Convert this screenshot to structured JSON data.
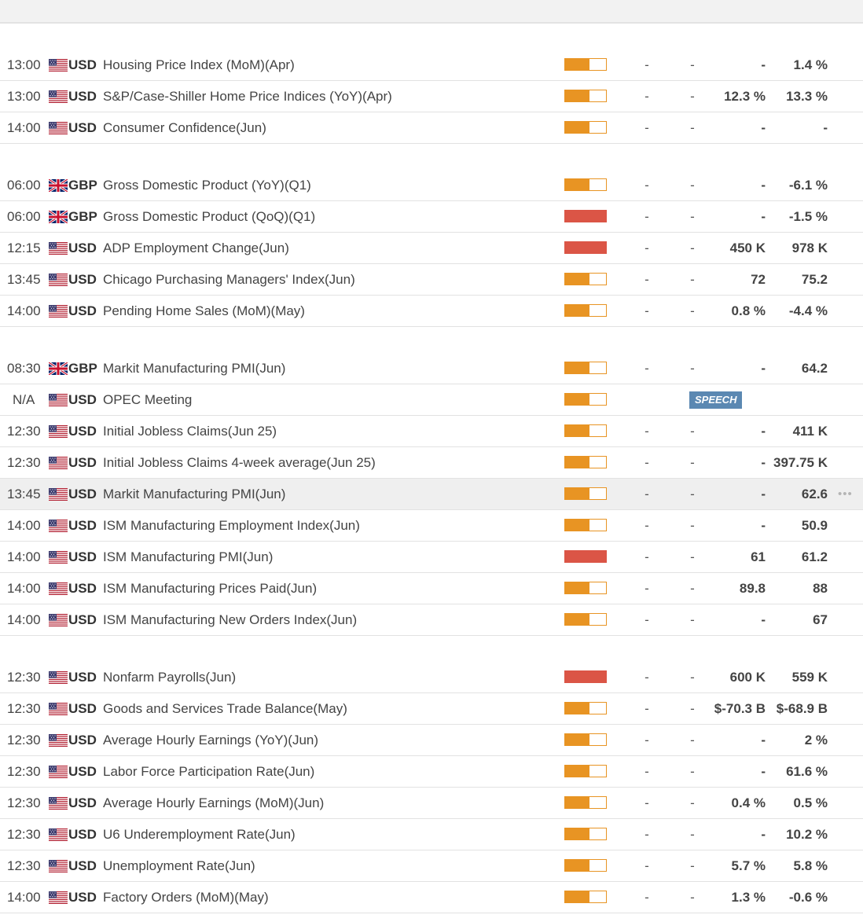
{
  "colors": {
    "medium": "#e89423",
    "high": "#db5546",
    "speech": "#5b88b2"
  },
  "sections": [
    {
      "rows": [
        {
          "time": "13:00",
          "flag": "us-flag-icon",
          "currency": "USD",
          "event": "Housing Price Index (MoM)(Apr)",
          "impact": "medium",
          "actual": "-",
          "deviation": "-",
          "consensus": "-",
          "previous": "1.4 %"
        },
        {
          "time": "13:00",
          "flag": "us-flag-icon",
          "currency": "USD",
          "event": "S&P/Case-Shiller Home Price Indices (YoY)(Apr)",
          "impact": "medium",
          "actual": "-",
          "deviation": "-",
          "consensus": "12.3 %",
          "previous": "13.3 %"
        },
        {
          "time": "14:00",
          "flag": "us-flag-icon",
          "currency": "USD",
          "event": "Consumer Confidence(Jun)",
          "impact": "medium",
          "actual": "-",
          "deviation": "-",
          "consensus": "-",
          "previous": "-"
        }
      ]
    },
    {
      "rows": [
        {
          "time": "06:00",
          "flag": "uk-flag-icon",
          "currency": "GBP",
          "event": "Gross Domestic Product (YoY)(Q1)",
          "impact": "medium",
          "actual": "-",
          "deviation": "-",
          "consensus": "-",
          "previous": "-6.1 %"
        },
        {
          "time": "06:00",
          "flag": "uk-flag-icon",
          "currency": "GBP",
          "event": "Gross Domestic Product (QoQ)(Q1)",
          "impact": "high",
          "actual": "-",
          "deviation": "-",
          "consensus": "-",
          "previous": "-1.5 %"
        },
        {
          "time": "12:15",
          "flag": "us-flag-icon",
          "currency": "USD",
          "event": "ADP Employment Change(Jun)",
          "impact": "high",
          "actual": "-",
          "deviation": "-",
          "consensus": "450 K",
          "previous": "978 K"
        },
        {
          "time": "13:45",
          "flag": "us-flag-icon",
          "currency": "USD",
          "event": "Chicago Purchasing Managers' Index(Jun)",
          "impact": "medium",
          "actual": "-",
          "deviation": "-",
          "consensus": "72",
          "previous": "75.2"
        },
        {
          "time": "14:00",
          "flag": "us-flag-icon",
          "currency": "USD",
          "event": "Pending Home Sales (MoM)(May)",
          "impact": "medium",
          "actual": "-",
          "deviation": "-",
          "consensus": "0.8 %",
          "previous": "-4.4 %"
        }
      ]
    },
    {
      "rows": [
        {
          "time": "08:30",
          "flag": "uk-flag-icon",
          "currency": "GBP",
          "event": "Markit Manufacturing PMI(Jun)",
          "impact": "medium",
          "actual": "-",
          "deviation": "-",
          "consensus": "-",
          "previous": "64.2"
        },
        {
          "time": "N/A",
          "flag": "us-flag-icon",
          "currency": "USD",
          "event": "OPEC Meeting",
          "impact": "medium",
          "speech": "SPEECH"
        },
        {
          "time": "12:30",
          "flag": "us-flag-icon",
          "currency": "USD",
          "event": "Initial Jobless Claims(Jun 25)",
          "impact": "medium",
          "actual": "-",
          "deviation": "-",
          "consensus": "-",
          "previous": "411 K"
        },
        {
          "time": "12:30",
          "flag": "us-flag-icon",
          "currency": "USD",
          "event": "Initial Jobless Claims 4-week average(Jun 25)",
          "impact": "medium",
          "actual": "-",
          "deviation": "-",
          "consensus": "-",
          "previous": "397.75 K"
        },
        {
          "time": "13:45",
          "flag": "us-flag-icon",
          "currency": "USD",
          "event": "Markit Manufacturing PMI(Jun)",
          "impact": "medium",
          "actual": "-",
          "deviation": "-",
          "consensus": "-",
          "previous": "62.6",
          "highlighted": true,
          "more": "•••"
        },
        {
          "time": "14:00",
          "flag": "us-flag-icon",
          "currency": "USD",
          "event": "ISM Manufacturing Employment Index(Jun)",
          "impact": "medium",
          "actual": "-",
          "deviation": "-",
          "consensus": "-",
          "previous": "50.9"
        },
        {
          "time": "14:00",
          "flag": "us-flag-icon",
          "currency": "USD",
          "event": "ISM Manufacturing PMI(Jun)",
          "impact": "high",
          "actual": "-",
          "deviation": "-",
          "consensus": "61",
          "previous": "61.2"
        },
        {
          "time": "14:00",
          "flag": "us-flag-icon",
          "currency": "USD",
          "event": "ISM Manufacturing Prices Paid(Jun)",
          "impact": "medium",
          "actual": "-",
          "deviation": "-",
          "consensus": "89.8",
          "previous": "88"
        },
        {
          "time": "14:00",
          "flag": "us-flag-icon",
          "currency": "USD",
          "event": "ISM Manufacturing New Orders Index(Jun)",
          "impact": "medium",
          "actual": "-",
          "deviation": "-",
          "consensus": "-",
          "previous": "67"
        }
      ]
    },
    {
      "rows": [
        {
          "time": "12:30",
          "flag": "us-flag-icon",
          "currency": "USD",
          "event": "Nonfarm Payrolls(Jun)",
          "impact": "high",
          "actual": "-",
          "deviation": "-",
          "consensus": "600 K",
          "previous": "559 K"
        },
        {
          "time": "12:30",
          "flag": "us-flag-icon",
          "currency": "USD",
          "event": "Goods and Services Trade Balance(May)",
          "impact": "medium",
          "actual": "-",
          "deviation": "-",
          "consensus": "$-70.3 B",
          "previous": "$-68.9 B"
        },
        {
          "time": "12:30",
          "flag": "us-flag-icon",
          "currency": "USD",
          "event": "Average Hourly Earnings (YoY)(Jun)",
          "impact": "medium",
          "actual": "-",
          "deviation": "-",
          "consensus": "-",
          "previous": "2 %"
        },
        {
          "time": "12:30",
          "flag": "us-flag-icon",
          "currency": "USD",
          "event": "Labor Force Participation Rate(Jun)",
          "impact": "medium",
          "actual": "-",
          "deviation": "-",
          "consensus": "-",
          "previous": "61.6 %"
        },
        {
          "time": "12:30",
          "flag": "us-flag-icon",
          "currency": "USD",
          "event": "Average Hourly Earnings (MoM)(Jun)",
          "impact": "medium",
          "actual": "-",
          "deviation": "-",
          "consensus": "0.4 %",
          "previous": "0.5 %"
        },
        {
          "time": "12:30",
          "flag": "us-flag-icon",
          "currency": "USD",
          "event": "U6 Underemployment Rate(Jun)",
          "impact": "medium",
          "actual": "-",
          "deviation": "-",
          "consensus": "-",
          "previous": "10.2 %"
        },
        {
          "time": "12:30",
          "flag": "us-flag-icon",
          "currency": "USD",
          "event": "Unemployment Rate(Jun)",
          "impact": "medium",
          "actual": "-",
          "deviation": "-",
          "consensus": "5.7 %",
          "previous": "5.8 %"
        },
        {
          "time": "14:00",
          "flag": "us-flag-icon",
          "currency": "USD",
          "event": "Factory Orders (MoM)(May)",
          "impact": "medium",
          "actual": "-",
          "deviation": "-",
          "consensus": "1.3 %",
          "previous": "-0.6 %"
        }
      ]
    }
  ]
}
